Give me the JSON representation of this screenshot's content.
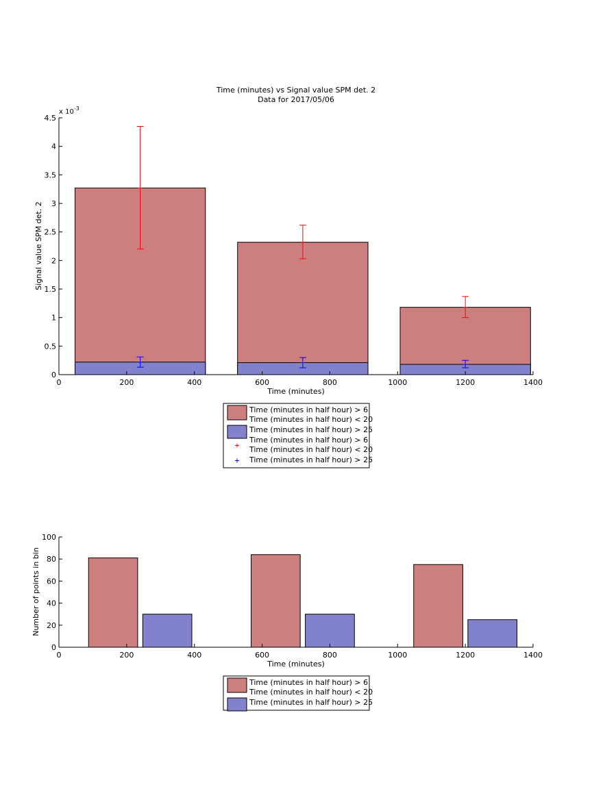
{
  "colors": {
    "bar_series_1": "#cc7f7d",
    "bar_series_2": "#8282cc",
    "error_series_1": "#ff0000",
    "error_series_2": "#0000ff"
  },
  "chart_data": [
    {
      "type": "bar",
      "title": "Time (minutes) vs Signal value SPM det. 2",
      "subtitle": "Data for 2017/05/06",
      "xlabel": "Time (minutes)",
      "ylabel": "Signal value SPM det. 2",
      "y_exponent_label": "x 10",
      "y_exponent": "-3",
      "xlim": [
        0,
        1400
      ],
      "ylim": [
        0,
        4.5
      ],
      "x_ticks": [
        "0",
        "200",
        "400",
        "600",
        "800",
        "1000",
        "1200",
        "1400"
      ],
      "y_ticks": [
        "0",
        "0.5",
        "1",
        "1.5",
        "2",
        "2.5",
        "3",
        "3.5",
        "4",
        "4.5"
      ],
      "layout": "overlaid",
      "bar_x": [
        240,
        720,
        1200
      ],
      "bar_width": 385,
      "series": [
        {
          "name": "Time (minutes in half hour) > 6",
          "name_line2": "Time (minutes in half hour) < 20",
          "values": [
            3.27,
            2.32,
            1.18
          ]
        },
        {
          "name": "Time (minutes in half hour) > 25",
          "values": [
            0.22,
            0.21,
            0.18
          ]
        }
      ],
      "error_bars": [
        {
          "name": "Time (minutes in half hour) > 6",
          "name_line2": "Time (minutes in half hour) < 20",
          "x": [
            240,
            720,
            1200
          ],
          "y": [
            3.27,
            2.32,
            1.18
          ],
          "low": [
            2.2,
            2.03,
            1.0
          ],
          "high": [
            4.35,
            2.62,
            1.37
          ]
        },
        {
          "name": "Time (minutes in half hour) > 25",
          "x": [
            240,
            720,
            1200
          ],
          "y": [
            0.22,
            0.21,
            0.18
          ],
          "low": [
            0.13,
            0.12,
            0.12
          ],
          "high": [
            0.31,
            0.3,
            0.25
          ]
        }
      ],
      "legend": {
        "placement": "below",
        "entries": [
          {
            "kind": "patch",
            "series": 0,
            "line1": "Time (minutes in half hour) > 6",
            "line2": "Time (minutes in half hour) < 20"
          },
          {
            "kind": "patch",
            "series": 1,
            "line1": "Time (minutes in half hour) > 25"
          },
          {
            "kind": "marker",
            "series": 0,
            "line1": "Time (minutes in half hour) > 6",
            "line2": "Time (minutes in half hour) < 20"
          },
          {
            "kind": "marker",
            "series": 1,
            "line1": "Time (minutes in half hour) > 25"
          }
        ]
      }
    },
    {
      "type": "bar",
      "title": "",
      "xlabel": "Time (minutes)",
      "ylabel": "Number of points in bin",
      "xlim": [
        0,
        1400
      ],
      "ylim": [
        0,
        100
      ],
      "x_ticks": [
        "0",
        "200",
        "400",
        "600",
        "800",
        "1000",
        "1200",
        "1400"
      ],
      "y_ticks": [
        "0",
        "20",
        "40",
        "60",
        "80",
        "100"
      ],
      "layout": "grouped",
      "bar_width": 145,
      "series": [
        {
          "name": "Time (minutes in half hour) > 6",
          "name_line2": "Time (minutes in half hour) < 20",
          "x": [
            160,
            640,
            1120
          ],
          "values": [
            81,
            84,
            75
          ]
        },
        {
          "name": "Time (minutes in half hour) > 25",
          "x": [
            320,
            800,
            1280
          ],
          "values": [
            30,
            30,
            25
          ]
        }
      ],
      "legend": {
        "placement": "below",
        "entries": [
          {
            "kind": "patch",
            "series": 0,
            "line1": "Time (minutes in half hour) > 6",
            "line2": "Time (minutes in half hour) < 20"
          },
          {
            "kind": "patch",
            "series": 1,
            "line1": "Time (minutes in half hour) > 25"
          }
        ]
      }
    }
  ]
}
